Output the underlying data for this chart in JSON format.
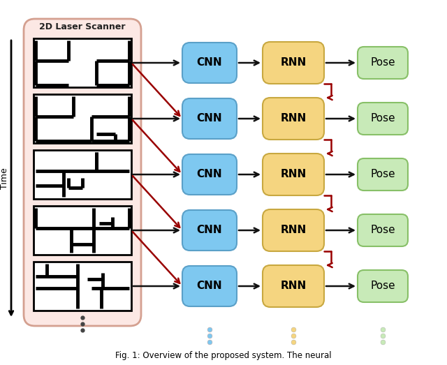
{
  "title": "Fig. 1: Overview of the proposed system. The neural",
  "scanner_label": "2D Laser Scanner",
  "time_label": "Time",
  "cnn_label": "CNN",
  "rnn_label": "RNN",
  "pose_label": "Pose",
  "n_rows": 5,
  "scanner_color": "#fce8e4",
  "scanner_border": "#d4a090",
  "cnn_color": "#7ec8f0",
  "cnn_border": "#5aa0c8",
  "rnn_color": "#f5d580",
  "rnn_border": "#c8a840",
  "pose_color": "#c8eab8",
  "pose_border": "#88c068",
  "arrow_color": "#111111",
  "recurrent_arrow_color": "#990000",
  "figure_bg": "#ffffff",
  "caption": "Fig. 1: Overview of the proposed system. The neural"
}
